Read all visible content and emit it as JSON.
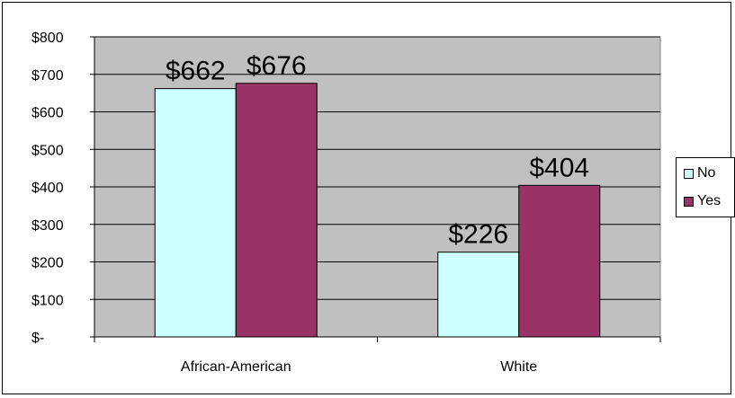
{
  "chart_data": {
    "type": "bar",
    "categories": [
      "African-American",
      "White"
    ],
    "series": [
      {
        "name": "No",
        "values": [
          662,
          226
        ],
        "color": "#CCFFFF",
        "labels": [
          "$662",
          "$226"
        ]
      },
      {
        "name": "Yes",
        "values": [
          676,
          404
        ],
        "color": "#993366",
        "labels": [
          "$676",
          "$404"
        ]
      }
    ],
    "ylim": [
      0,
      800
    ],
    "yticks": [
      0,
      100,
      200,
      300,
      400,
      500,
      600,
      700,
      800
    ],
    "ytick_labels": [
      "$-",
      "$100",
      "$200",
      "$300",
      "$400",
      "$500",
      "$600",
      "$700",
      "$800"
    ],
    "plot_background": "#C0C0C0",
    "grid": true,
    "legend_position": "right"
  }
}
